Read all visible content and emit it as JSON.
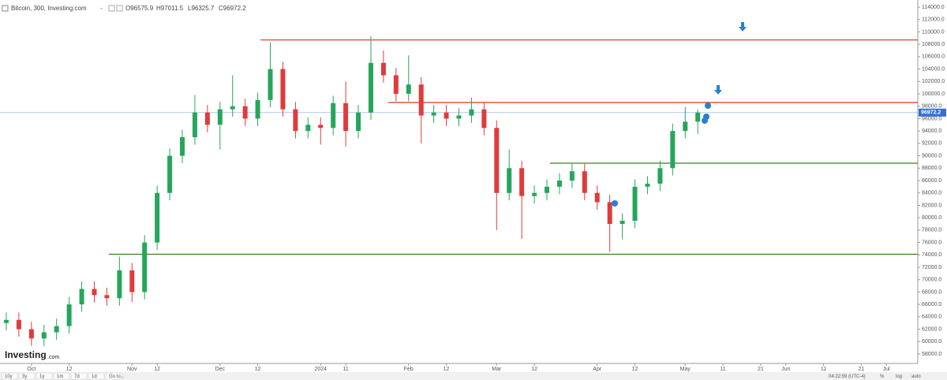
{
  "header": {
    "title": "Bitcoin, 300, Investing.com",
    "open": "O96575.9",
    "high": "H97011.5",
    "low": "L96325.7",
    "close": "C96972.2"
  },
  "ui": {
    "logo": "Investing",
    "logo_suffix": ".com",
    "ranges": [
      "10y",
      "3y",
      "1y",
      "1m",
      "7d",
      "1d",
      "Go to..."
    ],
    "clock": "04:22:59 (UTC-4)",
    "options": [
      "%",
      "log",
      "auto"
    ]
  },
  "chart_data": {
    "type": "candlestick",
    "categories": [
      null,
      null,
      "Oct",
      null,
      null,
      "12",
      null,
      null,
      null,
      null,
      "Nov",
      null,
      "12",
      null,
      null,
      null,
      null,
      "Dec",
      null,
      null,
      "12",
      null,
      null,
      null,
      null,
      "2024",
      null,
      "11",
      null,
      null,
      null,
      null,
      "Feb",
      null,
      null,
      "12",
      null,
      null,
      null,
      "Mar",
      null,
      null,
      "12",
      null,
      null,
      null,
      null,
      "Apr",
      null,
      null,
      "12",
      null,
      null,
      null,
      "May",
      null,
      null,
      "11",
      null,
      null,
      "21",
      null,
      "Jun",
      null,
      null,
      "11",
      null,
      null,
      "21",
      null,
      "Jul",
      null,
      null
    ],
    "open": [
      63000,
      63500,
      62000,
      60500,
      61500,
      62500,
      66000,
      68500,
      67500,
      67000,
      71500,
      68000,
      76000,
      84000,
      90000,
      93000,
      97000,
      95000,
      97500,
      98000,
      96000,
      99000,
      104000,
      97500,
      94000,
      95000,
      94500,
      98500,
      94000,
      97000,
      105000,
      103000,
      100000,
      101500,
      96500,
      97000,
      96000,
      96500,
      97500,
      94500,
      84000,
      88000,
      83500,
      84000,
      85000,
      86000,
      87500,
      84000,
      82500,
      79000,
      79500,
      85000,
      85500,
      88000,
      94000,
      95500,
      null,
      null,
      null,
      null,
      null,
      null,
      null,
      null,
      null,
      null,
      null,
      null,
      null,
      null,
      null,
      null,
      null
    ],
    "high": [
      64700,
      64700,
      63200,
      62700,
      63700,
      67200,
      69700,
      69700,
      68700,
      73700,
      72700,
      77200,
      85200,
      91200,
      94200,
      99800,
      98200,
      98700,
      103000,
      99200,
      100200,
      108300,
      105200,
      98700,
      96200,
      96200,
      99700,
      102000,
      98200,
      109300,
      107000,
      104200,
      106200,
      102700,
      98200,
      98200,
      97700,
      99400,
      98700,
      95700,
      91000,
      89200,
      85200,
      86200,
      87200,
      88700,
      88700,
      85200,
      83700,
      80700,
      86200,
      86700,
      89200,
      95200,
      97900,
      97500,
      null,
      null,
      null,
      null,
      null,
      null,
      null,
      null,
      null,
      null,
      null,
      null,
      null,
      null,
      null,
      null,
      null
    ],
    "low": [
      61800,
      60800,
      59300,
      59300,
      60300,
      61300,
      64800,
      66300,
      65800,
      65800,
      66400,
      66800,
      74800,
      82800,
      88800,
      91800,
      93800,
      91000,
      96300,
      94800,
      94800,
      97800,
      96300,
      92800,
      92800,
      91800,
      93300,
      91500,
      92800,
      95800,
      101800,
      98800,
      98800,
      92000,
      95300,
      94800,
      94800,
      95300,
      93300,
      78000,
      82800,
      76600,
      82300,
      82800,
      83800,
      84800,
      82800,
      81300,
      74500,
      76500,
      78300,
      83800,
      84300,
      86800,
      92800,
      93500,
      null,
      null,
      null,
      null,
      null,
      null,
      null,
      null,
      null,
      null,
      null,
      null,
      null,
      null,
      null,
      null,
      null
    ],
    "close": [
      63500,
      62000,
      60500,
      61500,
      62500,
      66000,
      68500,
      67500,
      67000,
      71500,
      68000,
      76000,
      84000,
      90000,
      93000,
      97000,
      95000,
      97500,
      98000,
      96000,
      99000,
      104000,
      97500,
      94000,
      95000,
      94500,
      98500,
      94000,
      97000,
      105000,
      103000,
      100000,
      101500,
      96500,
      97000,
      96000,
      96500,
      97500,
      94500,
      84000,
      88000,
      83500,
      84000,
      85000,
      86000,
      87500,
      84000,
      82500,
      79000,
      79500,
      85000,
      85500,
      88000,
      94000,
      95500,
      96972.2,
      null,
      null,
      null,
      null,
      null,
      null,
      null,
      null,
      null,
      null,
      null,
      null,
      null,
      null,
      null,
      null,
      null
    ],
    "up_color": "#26a65b",
    "down_color": "#e03b3b",
    "current_price": 96972.2,
    "current_color": "#2f6fd6",
    "levels": [
      {
        "value": 108700,
        "color": "#e0301e"
      },
      {
        "value": 98600,
        "color": "#e0301e"
      },
      {
        "value": 88800,
        "color": "#3e7d22"
      },
      {
        "value": 74100,
        "color": "#3e7d22"
      }
    ],
    "ylim": [
      56470,
      115150
    ],
    "yticks": [
      {
        "value": 58000,
        "label": "58000.0"
      },
      {
        "value": 60000,
        "label": "60000.0"
      },
      {
        "value": 62000,
        "label": "62000.0"
      },
      {
        "value": 64000,
        "label": "64000.0"
      },
      {
        "value": 66000,
        "label": "66000.0"
      },
      {
        "value": 68000,
        "label": "68000.0"
      },
      {
        "value": 70000,
        "label": "70000.0"
      },
      {
        "value": 72000,
        "label": "72000.0"
      },
      {
        "value": 74000,
        "label": "74000.0"
      },
      {
        "value": 76000,
        "label": "76000.0"
      },
      {
        "value": 78000,
        "label": "78000.0"
      },
      {
        "value": 80000,
        "label": "80000.0"
      },
      {
        "value": 82000,
        "label": "82000.0"
      },
      {
        "value": 84000,
        "label": "84000.0"
      },
      {
        "value": 86000,
        "label": "86000.0"
      },
      {
        "value": 88000,
        "label": "88000.0"
      },
      {
        "value": 90000,
        "label": "90000.0"
      },
      {
        "value": 92000,
        "label": "92000.0"
      },
      {
        "value": 94000,
        "label": "94000.0"
      },
      {
        "value": 96000,
        "label": "96000.0"
      },
      {
        "value": 98000,
        "label": "98000.0"
      },
      {
        "value": 100000,
        "label": "100000.0"
      },
      {
        "value": 102000,
        "label": "102000.0"
      },
      {
        "value": 104000,
        "label": "104000.0"
      },
      {
        "value": 106000,
        "label": "106000.0"
      },
      {
        "value": 108000,
        "label": "108000.0"
      },
      {
        "value": 110000,
        "label": "110000.0"
      },
      {
        "value": 112000,
        "label": "112000.0"
      },
      {
        "value": 114000,
        "label": "114000.0"
      }
    ],
    "grid": false
  }
}
